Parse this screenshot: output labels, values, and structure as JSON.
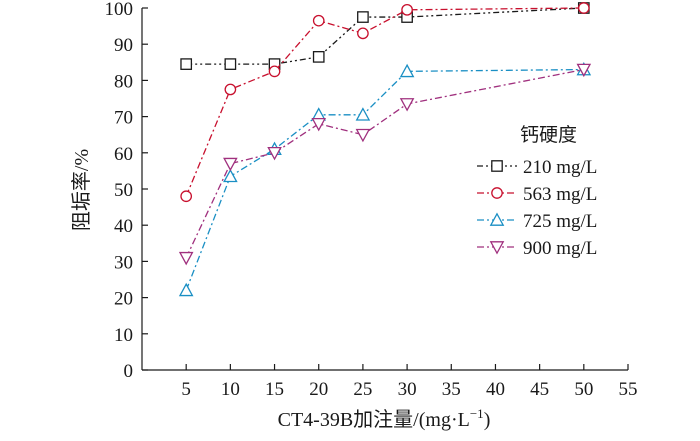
{
  "chart_data": {
    "type": "line",
    "title": "",
    "xlabel_main": "CT4-39B加注量/(mg·L",
    "xlabel_sup": "−1",
    "xlabel_close": ")",
    "ylabel": "阻垢率/%",
    "xlim": [
      0,
      55
    ],
    "ylim": [
      0,
      100
    ],
    "xticks": [
      5,
      10,
      15,
      20,
      25,
      30,
      35,
      40,
      45,
      50,
      55
    ],
    "yticks": [
      0,
      10,
      20,
      30,
      40,
      50,
      60,
      70,
      80,
      90,
      100
    ],
    "grid": false,
    "legend_title": "钙硬度",
    "legend_position": "right",
    "series": [
      {
        "name": "210 mg/L",
        "color": "#1a1a1a",
        "marker": "square",
        "dash": "dash-dot-dot",
        "x": [
          5,
          10,
          15,
          20,
          25,
          30,
          50
        ],
        "y": [
          84.5,
          84.5,
          84.5,
          86.5,
          97.5,
          97.5,
          100
        ]
      },
      {
        "name": "563 mg/L",
        "color": "#c8102e",
        "marker": "circle",
        "dash": "dash-dot",
        "x": [
          5,
          10,
          15,
          20,
          25,
          30,
          50
        ],
        "y": [
          48,
          77.5,
          82.5,
          96.5,
          93,
          99.5,
          100
        ]
      },
      {
        "name": "725 mg/L",
        "color": "#1a8fc4",
        "marker": "triangle-up",
        "dash": "dash-dot",
        "x": [
          5,
          10,
          15,
          20,
          25,
          30,
          50
        ],
        "y": [
          22,
          53.5,
          61,
          70.5,
          70.5,
          82.5,
          83
        ]
      },
      {
        "name": "900 mg/L",
        "color": "#a0307e",
        "marker": "triangle-down",
        "dash": "dash-dot",
        "x": [
          5,
          10,
          15,
          20,
          25,
          30,
          50
        ],
        "y": [
          31,
          57,
          60,
          68,
          65,
          73.5,
          83
        ]
      }
    ]
  }
}
